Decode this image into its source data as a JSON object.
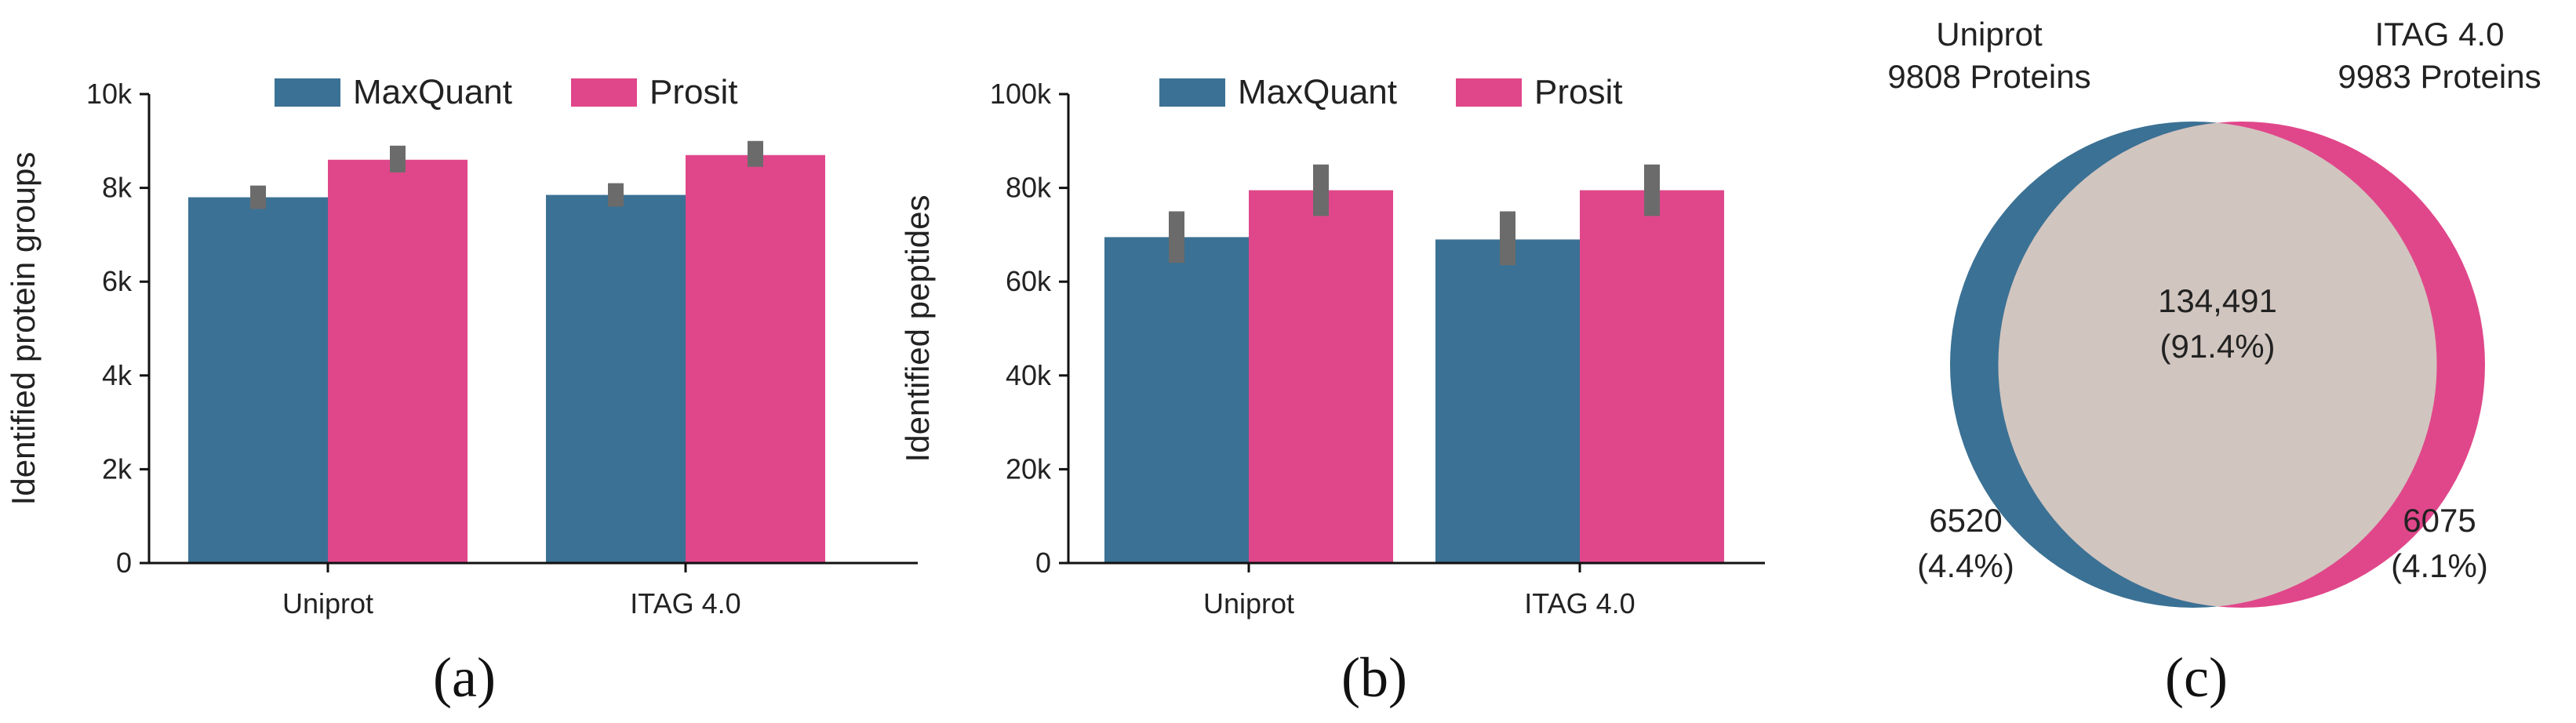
{
  "colors": {
    "maxquant": "#3b7194",
    "prosit": "#e0478a",
    "error": "#6b6b6b",
    "venn_overlap": "#d1c5bf"
  },
  "chart_data": [
    {
      "type": "bar",
      "panel": "(a)",
      "ylabel": "Identified protein groups",
      "categories": [
        "Uniprot",
        "ITAG 4.0"
      ],
      "ylim": [
        0,
        10000
      ],
      "yticks": [
        0,
        2000,
        4000,
        6000,
        8000,
        10000
      ],
      "ytick_labels": [
        "0",
        "2k",
        "4k",
        "6k",
        "8k",
        "10k"
      ],
      "legend": [
        "MaxQuant",
        "Prosit"
      ],
      "series": [
        {
          "name": "MaxQuant",
          "values": [
            7800,
            7850
          ],
          "err_low": [
            7550,
            7600
          ],
          "err_high": [
            8050,
            8100
          ]
        },
        {
          "name": "Prosit",
          "values": [
            8600,
            8700
          ],
          "err_low": [
            8330,
            8450
          ],
          "err_high": [
            8900,
            9000
          ]
        }
      ]
    },
    {
      "type": "bar",
      "panel": "(b)",
      "ylabel": "Identified peptides",
      "categories": [
        "Uniprot",
        "ITAG 4.0"
      ],
      "ylim": [
        0,
        100000
      ],
      "yticks": [
        0,
        20000,
        40000,
        60000,
        80000,
        100000
      ],
      "ytick_labels": [
        "0",
        "20k",
        "40k",
        "60k",
        "80k",
        "100k"
      ],
      "legend": [
        "MaxQuant",
        "Prosit"
      ],
      "series": [
        {
          "name": "MaxQuant",
          "values": [
            69500,
            69000
          ],
          "err_low": [
            64000,
            63500
          ],
          "err_high": [
            75000,
            75000
          ]
        },
        {
          "name": "Prosit",
          "values": [
            79500,
            79500
          ],
          "err_low": [
            74000,
            74000
          ],
          "err_high": [
            85000,
            85000
          ]
        }
      ]
    },
    {
      "type": "venn",
      "panel": "(c)",
      "sets": [
        {
          "name": "Uniprot",
          "subtitle": "9808 Proteins",
          "only_count": "6520",
          "only_pct": "(4.4%)"
        },
        {
          "name": "ITAG 4.0",
          "subtitle": "9983 Proteins",
          "only_count": "6075",
          "only_pct": "(4.1%)"
        }
      ],
      "overlap": {
        "count": "134,491",
        "pct": "(91.4%)"
      }
    }
  ]
}
